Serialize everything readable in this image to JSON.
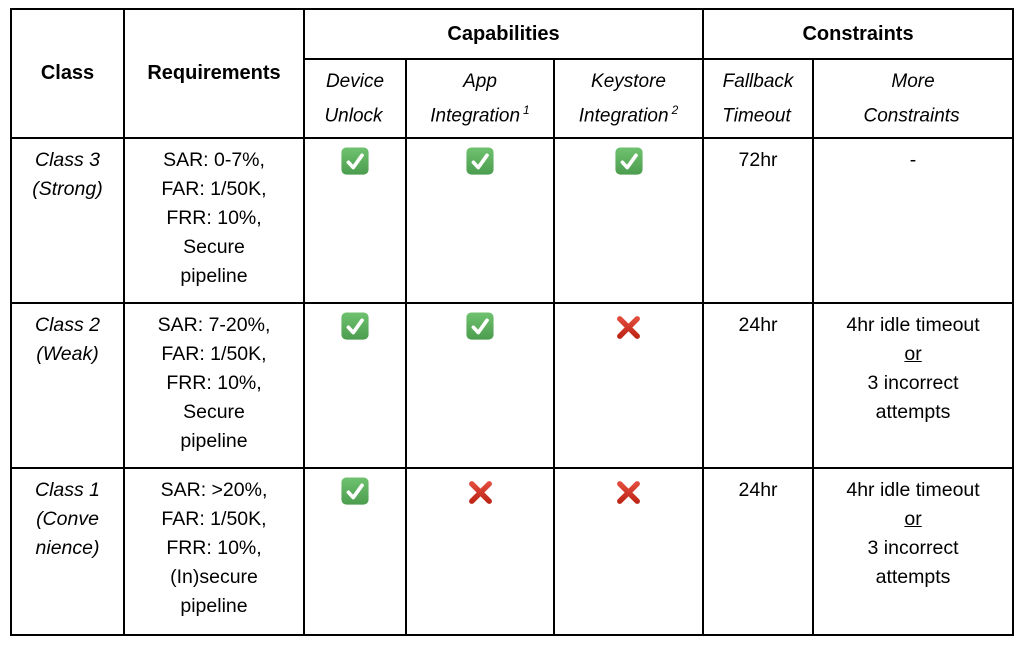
{
  "table": {
    "header": {
      "class_label": "Class",
      "requirements_label": "Requirements",
      "capabilities_label": "Capabilities",
      "constraints_label": "Constraints",
      "subheaders": [
        {
          "line1": "Device",
          "line2": "Unlock",
          "sup": ""
        },
        {
          "line1": "App",
          "line2": "Integration",
          "sup": "1"
        },
        {
          "line1": "Keystore",
          "line2": "Integration",
          "sup": "2"
        },
        {
          "line1": "Fallback",
          "line2": "Timeout",
          "sup": ""
        },
        {
          "line1": "More",
          "line2": "Constraints",
          "sup": ""
        }
      ]
    },
    "rows": [
      {
        "class_label": "Class 3\n(Strong)",
        "requirements": "SAR: 0-7%,\nFAR: 1/50K,\nFRR: 10%,\nSecure\npipeline",
        "capabilities": {
          "device_unlock": true,
          "app_integration": true,
          "keystore_integration": true
        },
        "fallback_timeout": "72hr",
        "more_constraints": {
          "part1": "-",
          "or": "",
          "part2": ""
        }
      },
      {
        "class_label": "Class 2\n(Weak)",
        "requirements": "SAR: 7-20%,\nFAR: 1/50K,\nFRR: 10%,\nSecure\npipeline",
        "capabilities": {
          "device_unlock": true,
          "app_integration": true,
          "keystore_integration": false
        },
        "fallback_timeout": "24hr",
        "more_constraints": {
          "part1": "4hr idle timeout",
          "or": "or",
          "part2": "3 incorrect\nattempts"
        }
      },
      {
        "class_label": "Class 1\n(Conve\nnience)",
        "requirements": "SAR: >20%,\nFAR: 1/50K,\nFRR: 10%,\n(In)secure\npipeline",
        "capabilities": {
          "device_unlock": true,
          "app_integration": false,
          "keystore_integration": false
        },
        "fallback_timeout": "24hr",
        "more_constraints": {
          "part1": "4hr idle timeout",
          "or": "or",
          "part2": "3 incorrect\nattempts"
        }
      }
    ]
  },
  "icons": {
    "yes": "check-icon",
    "no": "cross-icon"
  },
  "colors": {
    "border": "#000000",
    "background": "#ffffff",
    "text": "#000000",
    "check_green_top": "#6fc26f",
    "check_green_bottom": "#4c9d4f",
    "cross_red_top": "#e14b3b",
    "cross_red_bottom": "#bf2718"
  }
}
